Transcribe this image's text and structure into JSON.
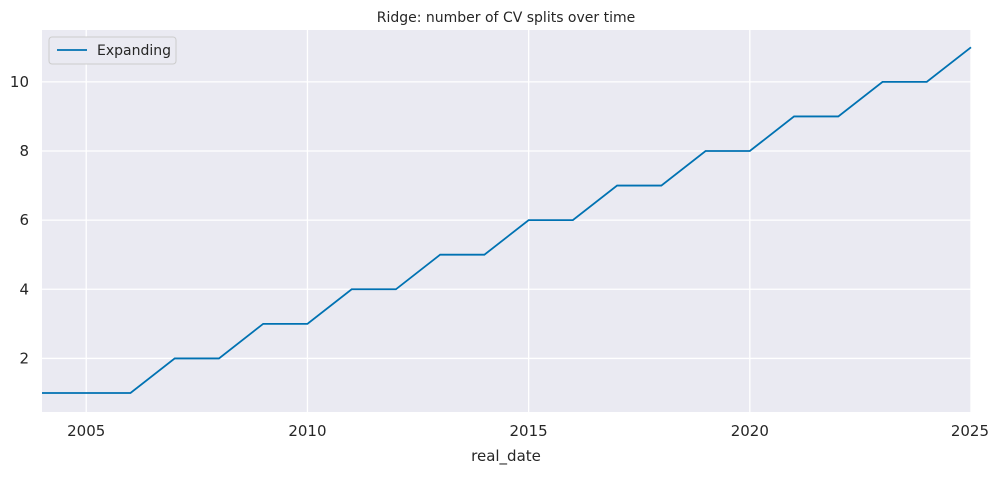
{
  "chart_data": {
    "type": "line",
    "title": "Ridge: number of CV splits over time",
    "xlabel": "real_date",
    "ylabel": "",
    "xlim": [
      2004,
      2025
    ],
    "ylim": [
      0.45,
      11.5
    ],
    "x_ticks": [
      "2005",
      "2010",
      "2015",
      "2020",
      "2025"
    ],
    "y_ticks": [
      "2",
      "4",
      "6",
      "8",
      "10"
    ],
    "grid": true,
    "legend_position": "top-left",
    "series": [
      {
        "name": "Expanding",
        "color": "#0072b2",
        "x": [
          2004,
          2005,
          2006,
          2007,
          2008,
          2009,
          2010,
          2011,
          2012,
          2013,
          2014,
          2015,
          2016,
          2017,
          2018,
          2019,
          2020,
          2021,
          2022,
          2023,
          2024,
          2025
        ],
        "y": [
          1,
          1,
          1,
          2,
          2,
          3,
          3,
          4,
          4,
          5,
          5,
          6,
          6,
          7,
          7,
          8,
          8,
          9,
          9,
          10,
          10,
          11
        ]
      }
    ]
  }
}
